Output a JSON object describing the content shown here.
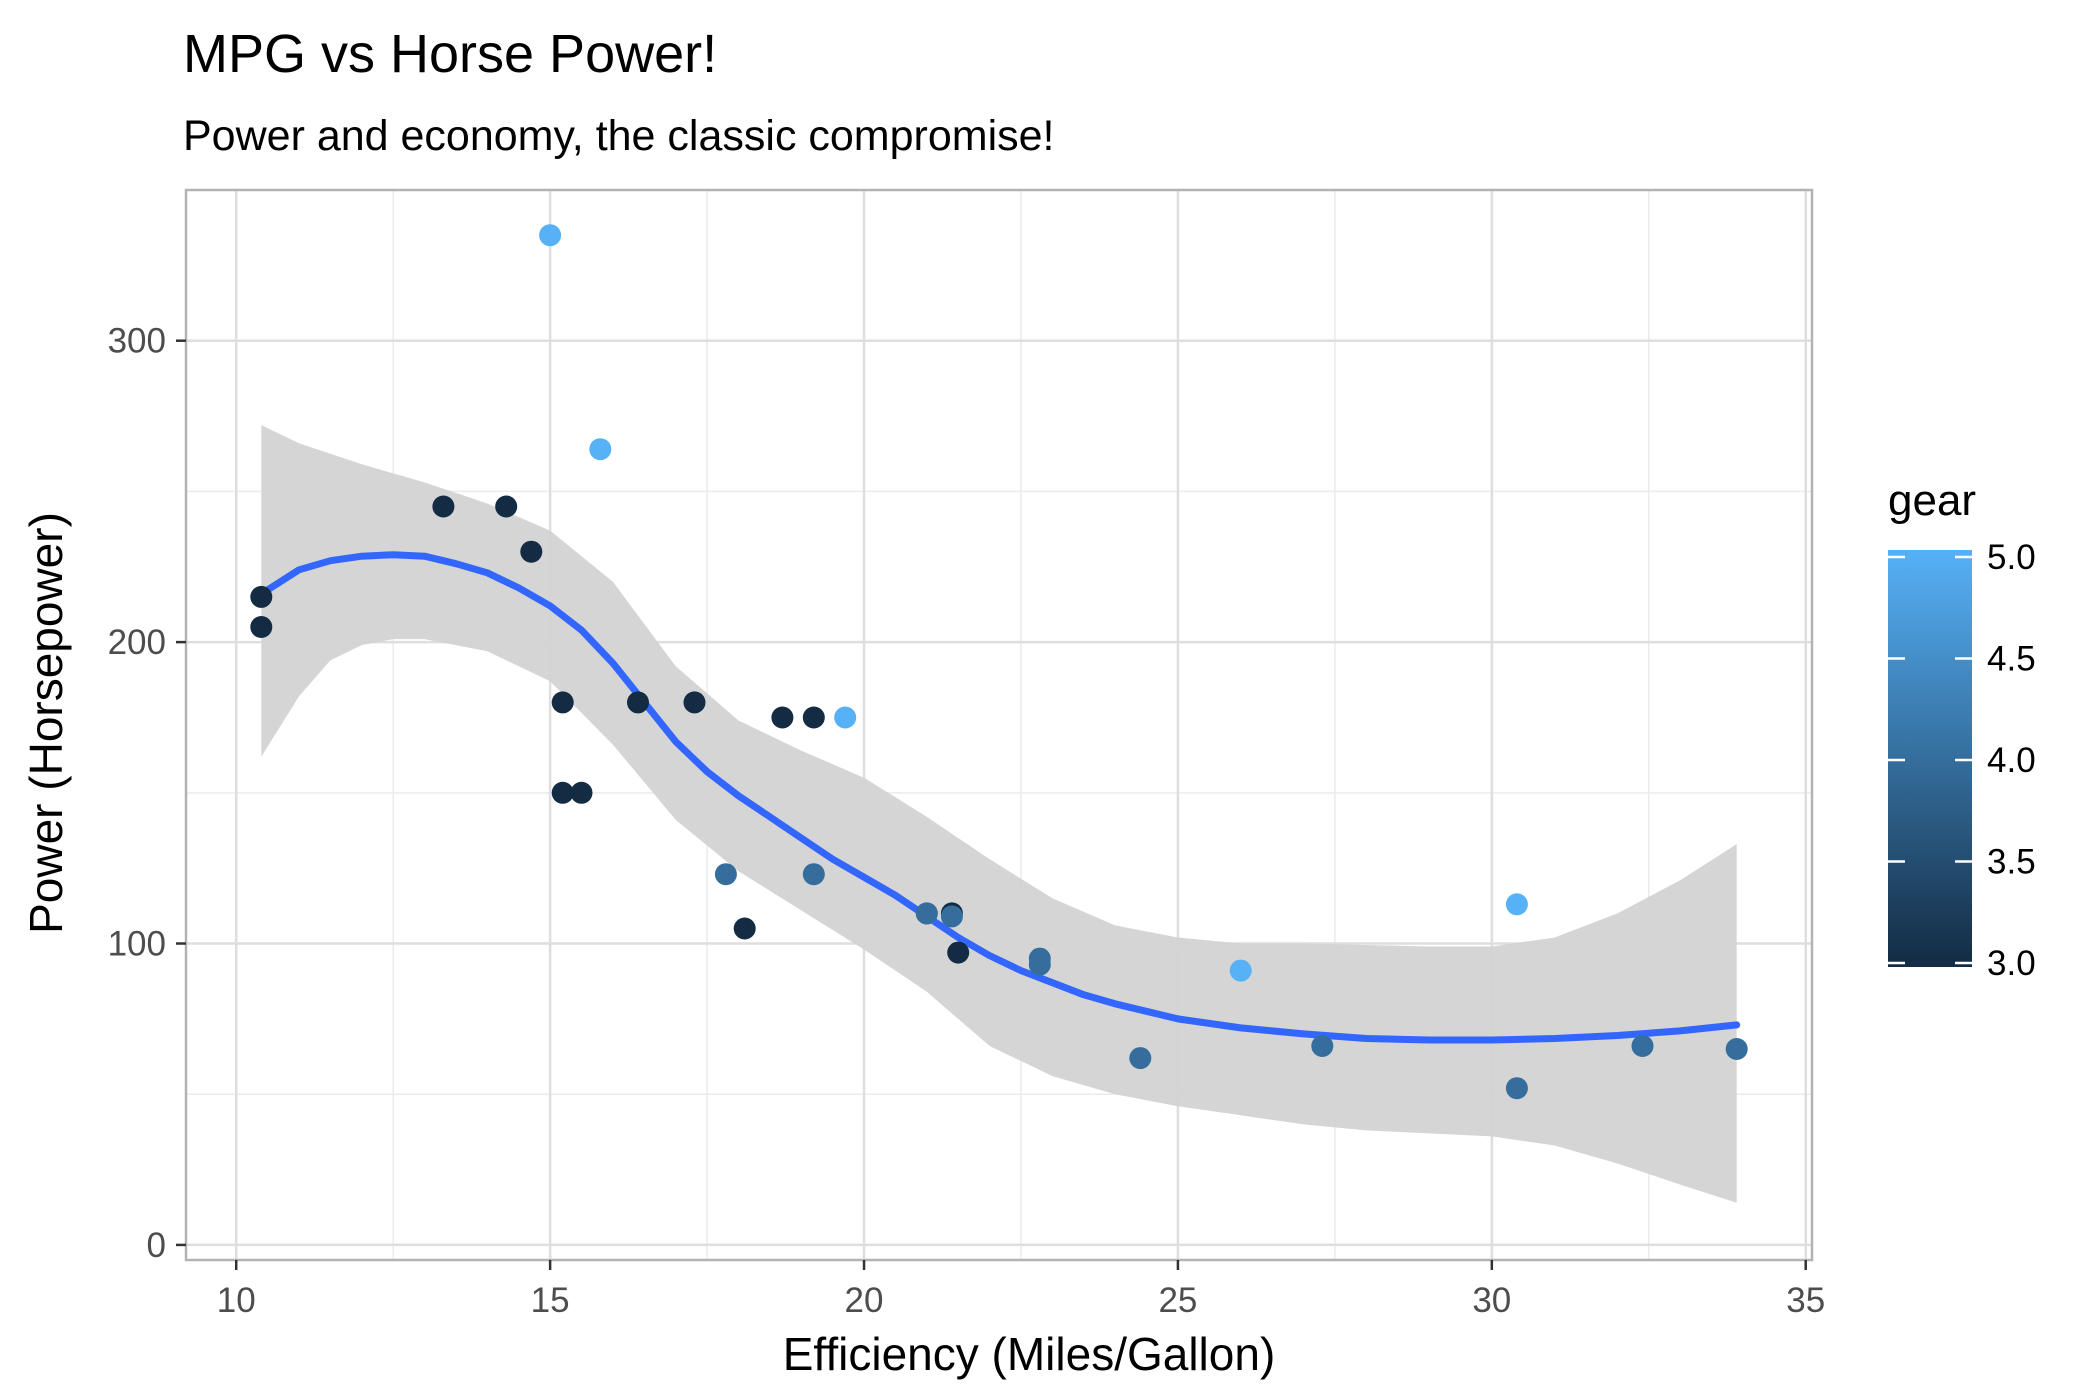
{
  "chart_data": {
    "type": "scatter",
    "title": "MPG vs Horse Power!",
    "subtitle": "Power and economy, the classic compromise!",
    "xlabel": "Efficiency (Miles/Gallon)",
    "ylabel": "Power (Horsepower)",
    "xlim": [
      9.2,
      35.1
    ],
    "ylim": [
      -5,
      350
    ],
    "x_ticks": [
      10,
      15,
      20,
      25,
      30,
      35
    ],
    "y_ticks": [
      0,
      100,
      200,
      300
    ],
    "grid": true,
    "legend": {
      "title": "gear",
      "placement": "right",
      "type": "colorbar",
      "range": [
        3.0,
        5.0
      ],
      "ticks": [
        "3.0",
        "3.5",
        "4.0",
        "4.5",
        "5.0"
      ],
      "color_low": "#132b43",
      "color_high": "#56b1f7"
    },
    "points": [
      {
        "x": 21.0,
        "y": 110,
        "gear": 4
      },
      {
        "x": 21.0,
        "y": 110,
        "gear": 4
      },
      {
        "x": 22.8,
        "y": 93,
        "gear": 4
      },
      {
        "x": 21.4,
        "y": 110,
        "gear": 3
      },
      {
        "x": 18.7,
        "y": 175,
        "gear": 3
      },
      {
        "x": 18.1,
        "y": 105,
        "gear": 3
      },
      {
        "x": 14.3,
        "y": 245,
        "gear": 3
      },
      {
        "x": 24.4,
        "y": 62,
        "gear": 4
      },
      {
        "x": 22.8,
        "y": 95,
        "gear": 4
      },
      {
        "x": 19.2,
        "y": 123,
        "gear": 4
      },
      {
        "x": 17.8,
        "y": 123,
        "gear": 4
      },
      {
        "x": 16.4,
        "y": 180,
        "gear": 3
      },
      {
        "x": 17.3,
        "y": 180,
        "gear": 3
      },
      {
        "x": 15.2,
        "y": 180,
        "gear": 3
      },
      {
        "x": 10.4,
        "y": 205,
        "gear": 3
      },
      {
        "x": 10.4,
        "y": 215,
        "gear": 3
      },
      {
        "x": 14.7,
        "y": 230,
        "gear": 3
      },
      {
        "x": 32.4,
        "y": 66,
        "gear": 4
      },
      {
        "x": 30.4,
        "y": 52,
        "gear": 4
      },
      {
        "x": 33.9,
        "y": 65,
        "gear": 4
      },
      {
        "x": 21.5,
        "y": 97,
        "gear": 3
      },
      {
        "x": 15.5,
        "y": 150,
        "gear": 3
      },
      {
        "x": 15.2,
        "y": 150,
        "gear": 3
      },
      {
        "x": 13.3,
        "y": 245,
        "gear": 3
      },
      {
        "x": 19.2,
        "y": 175,
        "gear": 3
      },
      {
        "x": 27.3,
        "y": 66,
        "gear": 4
      },
      {
        "x": 26.0,
        "y": 91,
        "gear": 5
      },
      {
        "x": 30.4,
        "y": 113,
        "gear": 5
      },
      {
        "x": 15.8,
        "y": 264,
        "gear": 5
      },
      {
        "x": 19.7,
        "y": 175,
        "gear": 5
      },
      {
        "x": 15.0,
        "y": 335,
        "gear": 5
      },
      {
        "x": 21.4,
        "y": 109,
        "gear": 4
      }
    ],
    "smooth": {
      "color": "#3366ff",
      "band_color": "#d3d3d3",
      "fit": [
        [
          10.4,
          216
        ],
        [
          11.0,
          224
        ],
        [
          11.5,
          227
        ],
        [
          12.0,
          228.5
        ],
        [
          12.5,
          229
        ],
        [
          13.0,
          228.5
        ],
        [
          13.5,
          226
        ],
        [
          14.0,
          223
        ],
        [
          14.5,
          218
        ],
        [
          15.0,
          212
        ],
        [
          15.5,
          204
        ],
        [
          16.0,
          193
        ],
        [
          16.5,
          180
        ],
        [
          17.0,
          167
        ],
        [
          17.5,
          157
        ],
        [
          18.0,
          149
        ],
        [
          18.5,
          142
        ],
        [
          19.0,
          135
        ],
        [
          19.5,
          128
        ],
        [
          20.0,
          122
        ],
        [
          20.5,
          116
        ],
        [
          21.0,
          109
        ],
        [
          21.5,
          102
        ],
        [
          22.0,
          96
        ],
        [
          22.5,
          91
        ],
        [
          23.0,
          87
        ],
        [
          23.5,
          83
        ],
        [
          24.0,
          80
        ],
        [
          25.0,
          75
        ],
        [
          26.0,
          72
        ],
        [
          27.0,
          70
        ],
        [
          28.0,
          68.5
        ],
        [
          29.0,
          68
        ],
        [
          30.0,
          68
        ],
        [
          31.0,
          68.5
        ],
        [
          32.0,
          69.5
        ],
        [
          33.0,
          71
        ],
        [
          33.9,
          73
        ]
      ],
      "upper": [
        [
          10.4,
          272
        ],
        [
          11.0,
          266
        ],
        [
          12.0,
          259
        ],
        [
          13.0,
          253
        ],
        [
          14.0,
          246
        ],
        [
          15.0,
          237
        ],
        [
          16.0,
          220
        ],
        [
          17.0,
          192
        ],
        [
          18.0,
          174
        ],
        [
          19.0,
          164
        ],
        [
          20.0,
          155
        ],
        [
          21.0,
          142
        ],
        [
          22.0,
          128
        ],
        [
          23.0,
          115
        ],
        [
          24.0,
          106
        ],
        [
          25.0,
          102
        ],
        [
          26.0,
          100
        ],
        [
          27.0,
          100
        ],
        [
          28.0,
          99.5
        ],
        [
          29.0,
          99
        ],
        [
          30.0,
          99
        ],
        [
          31.0,
          102
        ],
        [
          32.0,
          110
        ],
        [
          33.0,
          121
        ],
        [
          33.9,
          133
        ]
      ],
      "lower": [
        [
          10.4,
          162
        ],
        [
          11.0,
          182
        ],
        [
          11.5,
          194
        ],
        [
          12.0,
          199
        ],
        [
          12.5,
          201
        ],
        [
          13.0,
          201
        ],
        [
          14.0,
          197
        ],
        [
          15.0,
          187
        ],
        [
          16.0,
          166
        ],
        [
          17.0,
          141
        ],
        [
          18.0,
          124
        ],
        [
          19.0,
          111
        ],
        [
          20.0,
          98
        ],
        [
          21.0,
          84
        ],
        [
          22.0,
          66
        ],
        [
          23.0,
          56
        ],
        [
          24.0,
          50
        ],
        [
          25.0,
          46
        ],
        [
          26.0,
          43
        ],
        [
          27.0,
          40
        ],
        [
          28.0,
          38
        ],
        [
          29.0,
          37
        ],
        [
          30.0,
          36
        ],
        [
          31.0,
          33
        ],
        [
          32.0,
          27
        ],
        [
          33.0,
          20
        ],
        [
          33.9,
          14
        ]
      ]
    }
  }
}
